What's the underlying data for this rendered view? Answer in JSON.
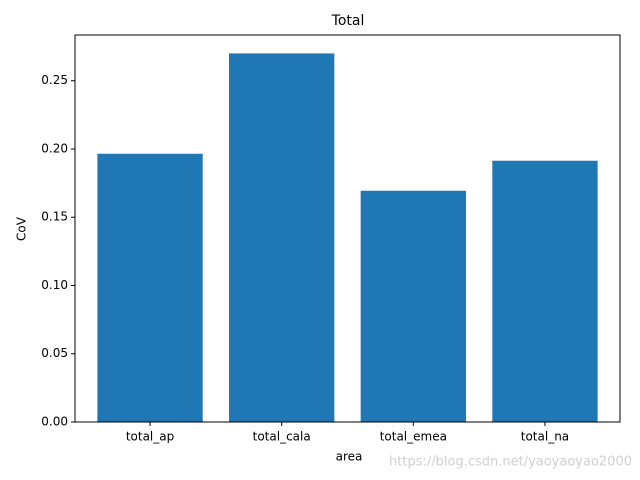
{
  "chart_data": {
    "type": "bar",
    "title": "Total",
    "xlabel": "area",
    "ylabel": "CoV",
    "categories": [
      "total_ap",
      "total_cala",
      "total_emea",
      "total_na"
    ],
    "values": [
      0.1965,
      0.27,
      0.1694,
      0.1914
    ],
    "color": "#1f77b4",
    "ylim": [
      0,
      0.2835
    ],
    "yticks": [
      {
        "value": 0,
        "label": "0.00"
      },
      0.05,
      {
        "value": 0.1,
        "label": "0.10"
      },
      0.15,
      {
        "value": 0.2,
        "label": "0.20"
      },
      0.25
    ],
    "watermark": "https://blog.csdn.net/yaoyaoyao2000"
  }
}
